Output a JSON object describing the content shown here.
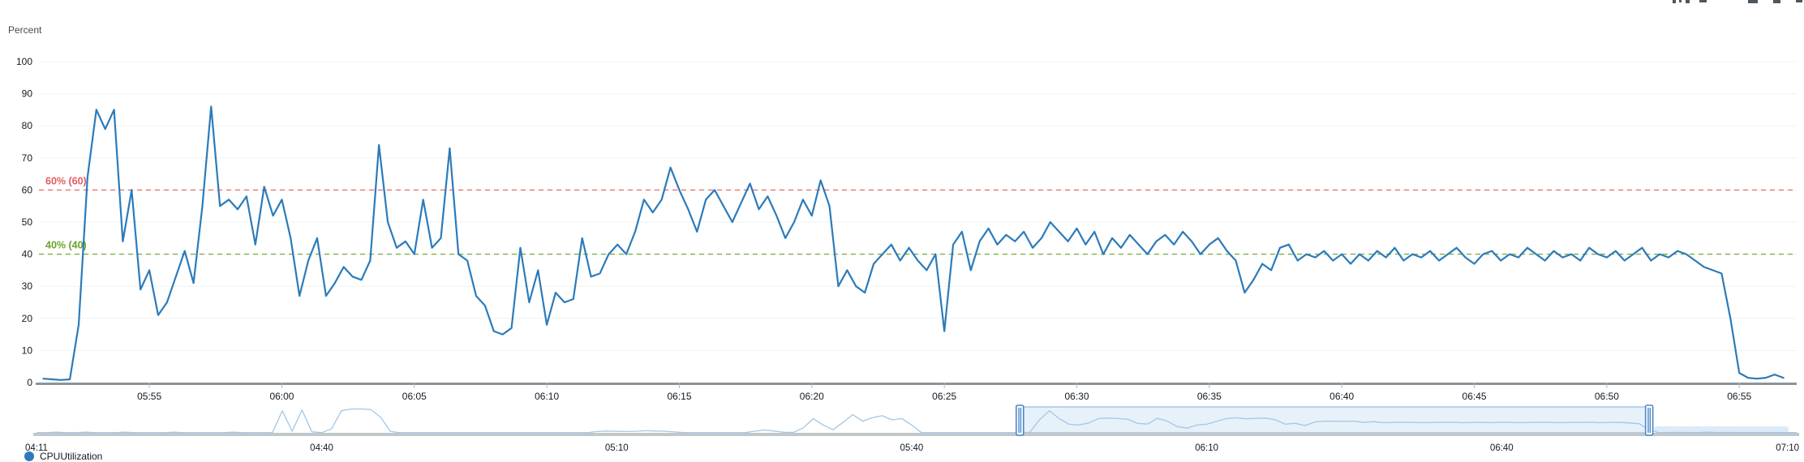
{
  "axis": {
    "unit_label": "Percent"
  },
  "legend": {
    "items": [
      {
        "label": "CPUUtilization",
        "color": "#2b7bba"
      }
    ]
  },
  "colors": {
    "line_blue": "#2b7bba",
    "minimap_blue": "#a3c7e8",
    "grid": "#f1f3f3",
    "axis_line": "#8a949c",
    "tick": "#b0b8bd",
    "text": "#16191f",
    "annotation_red": "#e05d61",
    "annotation_green": "#6ba32a",
    "brush_fill": "rgba(176,208,238,0.30)",
    "brush_border": "#7eadda",
    "brush_handle": "#4c86c8",
    "residual_fill": "#dcebf8",
    "baseline_gray": "#c2c7ca"
  },
  "chart_data": [
    {
      "type": "line",
      "title": "",
      "xlabel": "",
      "ylabel": "Percent",
      "ylim": [
        0,
        100
      ],
      "grid": "horizontal",
      "y_ticks": [
        0,
        10,
        20,
        30,
        40,
        50,
        60,
        70,
        80,
        90,
        100
      ],
      "x_tick_labels": [
        "05:55",
        "06:00",
        "06:05",
        "06:10",
        "06:15",
        "06:20",
        "06:25",
        "06:30",
        "06:35",
        "06:40",
        "06:45",
        "06:50",
        "06:55"
      ],
      "x_domain": [
        "05:50:50",
        "06:57:10"
      ],
      "annotations": [
        {
          "label": "60% (60)",
          "value": 60,
          "color": "#e05d61",
          "style": "dashed"
        },
        {
          "label": "40% (40)",
          "value": 40,
          "color": "#6ba32a",
          "style": "dashed"
        }
      ],
      "series": [
        {
          "name": "CPUUtilization",
          "color": "#2b7bba",
          "start_time": "05:51:00",
          "interval_seconds": 20,
          "values": [
            1.2,
            1,
            0.8,
            1,
            18,
            64,
            85,
            79,
            85,
            44,
            60,
            29,
            35,
            21,
            25,
            33,
            41,
            31,
            55,
            86,
            55,
            57,
            54,
            58,
            43,
            61,
            52,
            57,
            45,
            27,
            38,
            45,
            27,
            31,
            36,
            33,
            32,
            38,
            74,
            50,
            42,
            44,
            40,
            57,
            42,
            45,
            73,
            40,
            38,
            27,
            24,
            16,
            15,
            17,
            42,
            25,
            35,
            18,
            28,
            25,
            26,
            45,
            33,
            34,
            40,
            43,
            40,
            47,
            57,
            53,
            57,
            67,
            60,
            54,
            47,
            57,
            60,
            55,
            50,
            56,
            62,
            54,
            58,
            52,
            45,
            50,
            57,
            52,
            63,
            55,
            30,
            35,
            30,
            28,
            37,
            40,
            43,
            38,
            42,
            38,
            35,
            40,
            16,
            43,
            47,
            35,
            44,
            48,
            43,
            46,
            44,
            47,
            42,
            45,
            50,
            47,
            44,
            48,
            43,
            47,
            40,
            45,
            42,
            46,
            43,
            40,
            44,
            46,
            43,
            47,
            44,
            40,
            43,
            45,
            41,
            38,
            28,
            32,
            37,
            35,
            42,
            43,
            38,
            40,
            39,
            41,
            38,
            40,
            37,
            40,
            38,
            41,
            39,
            42,
            38,
            40,
            39,
            41,
            38,
            40,
            42,
            39,
            37,
            40,
            41,
            38,
            40,
            39,
            42,
            40,
            38,
            41,
            39,
            40,
            38,
            42,
            40,
            39,
            41,
            38,
            40,
            42,
            38,
            40,
            39,
            41,
            40,
            38,
            36,
            35,
            34,
            20,
            3,
            1.5,
            1.2,
            1.5,
            2.5,
            1.5
          ]
        }
      ]
    },
    {
      "type": "line",
      "role": "overview-minimap",
      "ylim": [
        0,
        100
      ],
      "x_tick_labels": [
        "04:11",
        "04:40",
        "05:10",
        "05:40",
        "06:10",
        "06:40",
        "07:10"
      ],
      "x_domain": [
        "04:11",
        "07:10"
      ],
      "brush": {
        "start": "05:51",
        "end": "06:55"
      },
      "series": [
        {
          "name": "CPUUtilization (overview)",
          "color": "#a3c7e8",
          "start_time": "04:11",
          "interval_seconds": 60,
          "values": [
            0.5,
            0.5,
            2.5,
            0.5,
            0.5,
            2.5,
            0.5,
            0.5,
            0.5,
            2.5,
            0.5,
            0.5,
            0.5,
            0.5,
            2.5,
            0.5,
            0.5,
            0.5,
            0.5,
            0.5,
            2.5,
            0.5,
            0.5,
            0.5,
            1,
            85,
            6,
            88,
            4,
            0.5,
            15,
            85,
            92,
            92,
            90,
            60,
            5,
            0.5,
            0.5,
            0.5,
            0.5,
            0.5,
            0.5,
            0.5,
            0.5,
            0.5,
            0.5,
            0.5,
            0.5,
            0.5,
            0.5,
            0.5,
            0.5,
            0.5,
            0.5,
            0.5,
            0.5,
            5,
            7,
            6,
            5,
            6,
            8,
            7,
            6,
            3,
            0.5,
            0.5,
            0.5,
            0.5,
            0.5,
            0.5,
            0.5,
            6,
            11,
            7,
            2,
            2,
            20,
            55,
            30,
            12,
            40,
            70,
            45,
            58,
            66,
            50,
            55,
            30,
            0.5,
            0.5,
            0.5,
            0.5,
            0.5,
            0.5,
            0.5,
            0.5,
            0.5,
            0.5,
            1,
            2,
            50,
            85,
            55,
            33,
            30,
            38,
            55,
            57,
            55,
            52,
            36,
            34,
            56,
            45,
            24,
            18,
            30,
            33,
            44,
            55,
            58,
            54,
            56,
            57,
            50,
            33,
            37,
            28,
            42,
            45,
            45,
            44,
            45,
            40,
            43,
            39,
            40,
            41,
            40,
            39,
            40,
            40,
            41,
            39,
            40,
            40,
            39,
            41,
            40,
            39,
            40,
            41,
            40,
            39,
            40,
            40,
            41,
            39,
            40,
            40,
            38,
            35,
            10,
            1,
            1,
            2,
            1,
            1,
            2.5,
            1,
            1.5,
            1,
            1,
            1,
            1,
            1,
            1,
            1
          ]
        }
      ]
    }
  ]
}
